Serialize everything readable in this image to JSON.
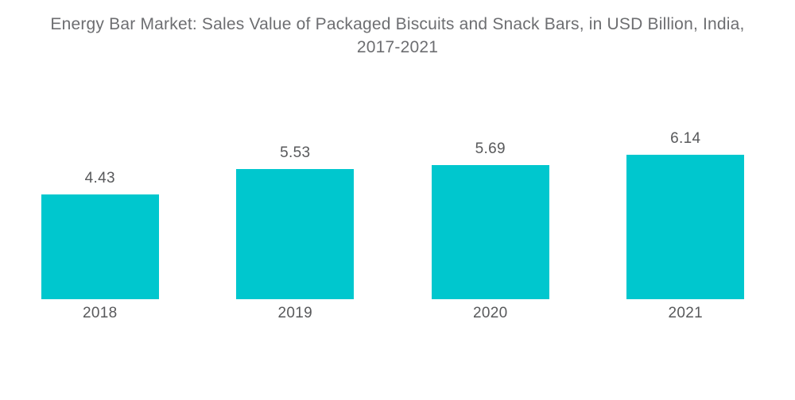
{
  "title": {
    "line1": "Energy Bar Market: Sales Value of Packaged Biscuits and Snack Bars, in USD Billion, India,",
    "line2": "2017-2021"
  },
  "colors": {
    "bar": "#00C7CE",
    "title_text": "#6D6E71",
    "label_text": "#58595B",
    "background": "#FFFFFF"
  },
  "chart_data": {
    "type": "bar",
    "title": "Energy Bar Market: Sales Value of Packaged Biscuits and Snack Bars, in USD Billion, India, 2017-2021",
    "categories": [
      "2018",
      "2019",
      "2020",
      "2021"
    ],
    "values": [
      4.43,
      5.53,
      5.69,
      6.14
    ],
    "value_labels": [
      "4.43",
      "5.53",
      "5.69",
      "6.14"
    ],
    "xlabel": "",
    "ylabel": "",
    "ylim": [
      0,
      6.5
    ],
    "grid": false,
    "legend": false,
    "axes_shown": false,
    "bar_color": "#00C7CE",
    "value_labels_shown": true
  }
}
